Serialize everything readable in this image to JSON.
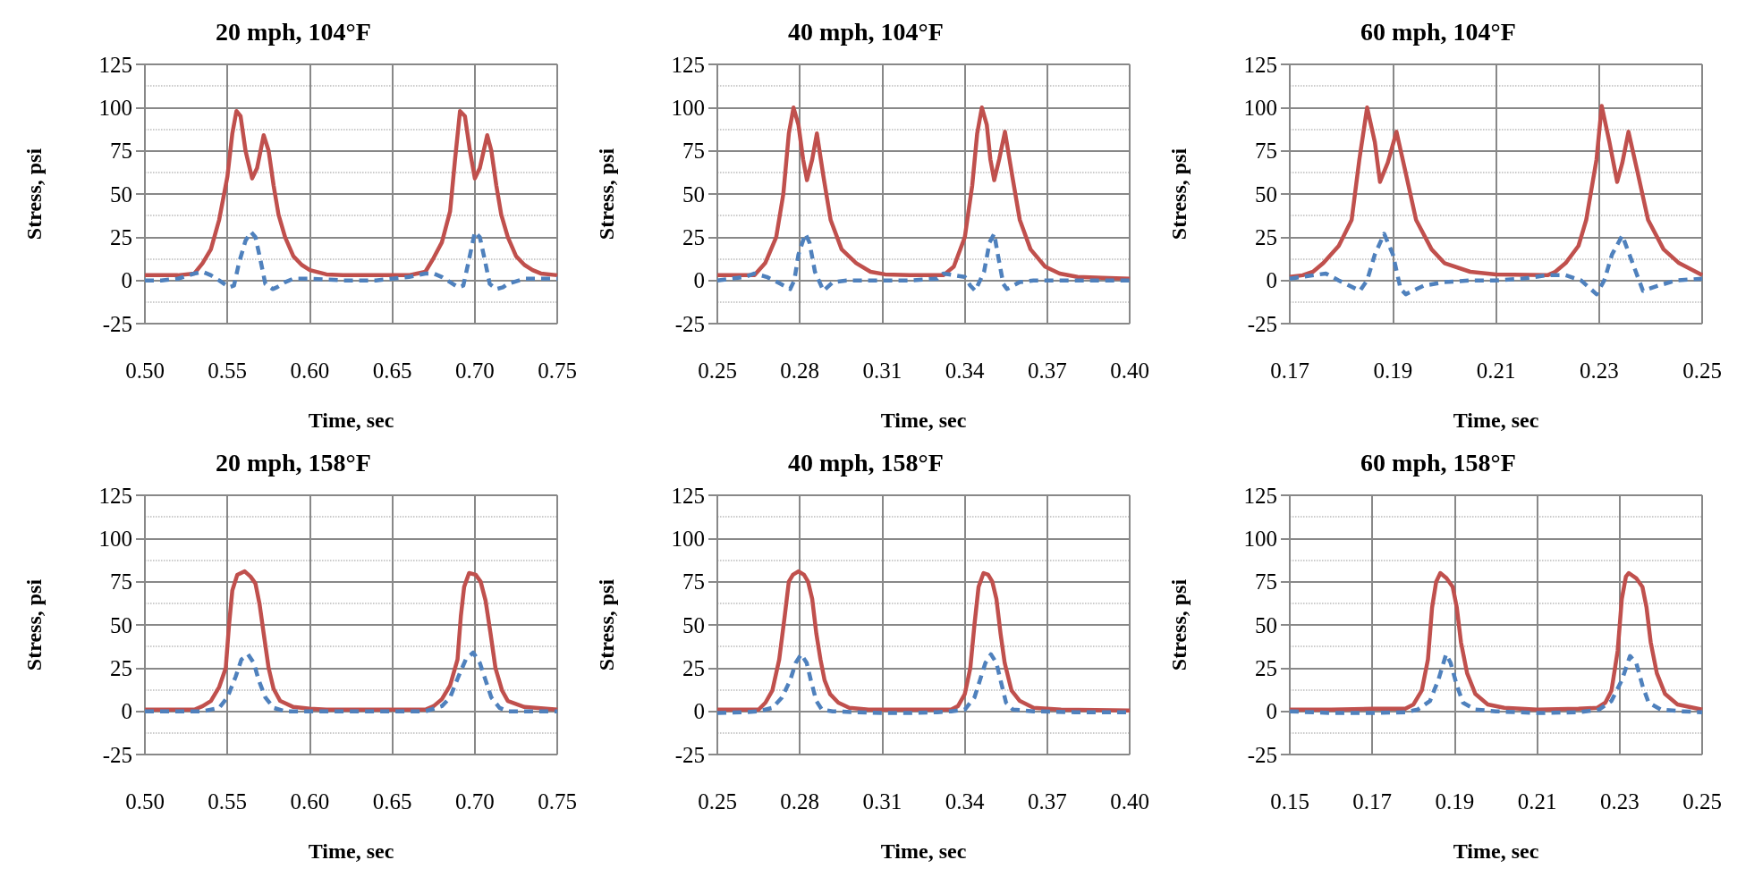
{
  "chart_data": [
    {
      "type": "line",
      "title": "20 mph, 104°F",
      "xlabel": "Time, sec",
      "ylabel": "Stress, psi",
      "xlim": [
        0.5,
        0.75
      ],
      "xticks": [
        {
          "value": 0.5,
          "label": "0.50"
        },
        0.55,
        {
          "value": 0.6,
          "label": "0.60"
        },
        0.65,
        {
          "value": 0.7,
          "label": "0.70"
        },
        0.75
      ],
      "ylim": [
        -25,
        125
      ],
      "yticks": [
        -25,
        0,
        25,
        50,
        75,
        100,
        125
      ],
      "grid": true,
      "series": [
        {
          "color": "#c0504d",
          "line_style": "solid",
          "x": [
            0.5,
            0.52,
            0.53,
            0.535,
            0.54,
            0.545,
            0.55,
            0.553,
            0.5555,
            0.558,
            0.561,
            0.565,
            0.568,
            0.572,
            0.575,
            0.578,
            0.581,
            0.585,
            0.59,
            0.595,
            0.6,
            0.61,
            0.62,
            0.64,
            0.66,
            0.665,
            0.67,
            0.675,
            0.68,
            0.685,
            0.688,
            0.691,
            0.694,
            0.697,
            0.7,
            0.703,
            0.7075,
            0.71,
            0.713,
            0.716,
            0.72,
            0.725,
            0.73,
            0.735,
            0.74,
            0.75
          ],
          "values": [
            3,
            3,
            4,
            10,
            18,
            35,
            60,
            85,
            98,
            95,
            75,
            59,
            65,
            84,
            75,
            55,
            38,
            25,
            14,
            9,
            6,
            3.5,
            3,
            3,
            3,
            4,
            5,
            13,
            22,
            40,
            70,
            98,
            95,
            75,
            59,
            65,
            84,
            75,
            55,
            38,
            25,
            14,
            9,
            6,
            4,
            3
          ]
        },
        {
          "color": "#4f81bd",
          "line_style": "dashed",
          "x": [
            0.5,
            0.51,
            0.52,
            0.53,
            0.535,
            0.54,
            0.545,
            0.551,
            0.554,
            0.557,
            0.561,
            0.5643,
            0.567,
            0.57,
            0.573,
            0.5775,
            0.58,
            0.585,
            0.59,
            0.6,
            0.62,
            0.64,
            0.65,
            0.66,
            0.67,
            0.675,
            0.68,
            0.685,
            0.69,
            0.693,
            0.696,
            0.7,
            0.703,
            0.706,
            0.709,
            0.713,
            0.717,
            0.72,
            0.73,
            0.74,
            0.75
          ],
          "values": [
            0,
            0,
            1,
            4,
            5,
            3,
            0,
            -4,
            -3,
            10,
            23,
            28,
            25,
            12,
            -2,
            -5,
            -4,
            -1,
            1,
            1,
            0,
            0,
            1,
            2,
            4,
            4,
            2,
            -1,
            -4,
            -3,
            10,
            28,
            25,
            12,
            -2,
            -5,
            -4,
            -2,
            1,
            1,
            1
          ]
        }
      ]
    },
    {
      "type": "line",
      "title": "40 mph, 104°F",
      "xlabel": "Time, sec",
      "ylabel": "Stress, psi",
      "xlim": [
        0.25,
        0.4
      ],
      "xticks": [
        0.25,
        0.28,
        0.31,
        0.34,
        0.37,
        {
          "value": 0.4,
          "label": "0.40"
        }
      ],
      "ylim": [
        -25,
        125
      ],
      "yticks": [
        -25,
        0,
        25,
        50,
        75,
        100,
        125
      ],
      "grid": true,
      "series": [
        {
          "color": "#c0504d",
          "line_style": "solid",
          "x": [
            0.25,
            0.255,
            0.26,
            0.2635,
            0.2674,
            0.2714,
            0.274,
            0.276,
            0.2777,
            0.2795,
            0.2812,
            0.2826,
            0.2845,
            0.2862,
            0.2886,
            0.2912,
            0.2952,
            0.3005,
            0.3057,
            0.311,
            0.32,
            0.3322,
            0.336,
            0.34,
            0.3427,
            0.3445,
            0.3462,
            0.348,
            0.3493,
            0.3507,
            0.3525,
            0.3546,
            0.3573,
            0.36,
            0.3639,
            0.3692,
            0.3745,
            0.381,
            0.39,
            0.4
          ],
          "values": [
            3,
            3,
            3,
            3,
            10,
            25,
            50,
            85,
            100,
            90,
            70,
            58,
            70,
            85,
            60,
            35,
            18,
            10,
            5,
            3.5,
            3,
            3,
            8,
            25,
            55,
            85,
            100,
            90,
            70,
            58,
            70,
            86,
            60,
            35,
            18,
            8,
            4,
            2,
            1.5,
            1
          ]
        },
        {
          "color": "#4f81bd",
          "line_style": "dashed",
          "x": [
            0.25,
            0.26,
            0.2635,
            0.268,
            0.273,
            0.2765,
            0.278,
            0.2795,
            0.282,
            0.2835,
            0.2855,
            0.2886,
            0.292,
            0.297,
            0.31,
            0.32,
            0.33,
            0.3322,
            0.34,
            0.342,
            0.3438,
            0.347,
            0.349,
            0.3507,
            0.352,
            0.354,
            0.3553,
            0.36,
            0.365,
            0.4
          ],
          "values": [
            0,
            2,
            4,
            2,
            -2,
            -5,
            0,
            15,
            27,
            22,
            5,
            -6,
            -1,
            0,
            0,
            0,
            1,
            4,
            2,
            -3,
            -6,
            5,
            22,
            27,
            15,
            -2,
            -5,
            -1,
            0,
            0
          ]
        }
      ]
    },
    {
      "type": "line",
      "title": "60 mph, 104°F",
      "xlabel": "Time, sec",
      "ylabel": "Stress, psi",
      "xlim": [
        0.17,
        0.25
      ],
      "xticks": [
        0.17,
        0.19,
        0.21,
        0.23,
        0.25
      ],
      "ylim": [
        -25,
        125
      ],
      "yticks": [
        -25,
        0,
        25,
        50,
        75,
        100,
        125
      ],
      "grid": true,
      "series": [
        {
          "color": "#c0504d",
          "line_style": "solid",
          "x": [
            0.17,
            0.1725,
            0.1745,
            0.1765,
            0.1795,
            0.182,
            0.1835,
            0.185,
            0.1865,
            0.1875,
            0.189,
            0.1907,
            0.1925,
            0.1945,
            0.1975,
            0.2,
            0.205,
            0.21,
            0.22,
            0.2215,
            0.2235,
            0.226,
            0.2275,
            0.2295,
            0.2305,
            0.232,
            0.2335,
            0.2345,
            0.2357,
            0.2375,
            0.2395,
            0.2425,
            0.2455,
            0.25
          ],
          "values": [
            2,
            3,
            5,
            10,
            20,
            35,
            70,
            100,
            80,
            57,
            68,
            86,
            62,
            35,
            18,
            10,
            5,
            3.5,
            3,
            5,
            10,
            20,
            35,
            70,
            101,
            80,
            57,
            68,
            86,
            62,
            35,
            18,
            10,
            3
          ]
        },
        {
          "color": "#4f81bd",
          "line_style": "dashed",
          "x": [
            0.17,
            0.177,
            0.1795,
            0.1836,
            0.185,
            0.1865,
            0.1883,
            0.19,
            0.1915,
            0.1925,
            0.196,
            0.2,
            0.205,
            0.21,
            0.215,
            0.22,
            0.2235,
            0.2265,
            0.2295,
            0.231,
            0.2325,
            0.2345,
            0.2365,
            0.2385,
            0.2415,
            0.245,
            0.25
          ],
          "values": [
            1,
            4,
            0,
            -6,
            0,
            15,
            27,
            15,
            -5,
            -8,
            -3,
            -1,
            0,
            0,
            1,
            3,
            3,
            0,
            -8,
            0,
            15,
            26,
            10,
            -6,
            -3,
            0,
            1
          ]
        }
      ]
    },
    {
      "type": "line",
      "title": "20 mph, 158°F",
      "xlabel": "Time, sec",
      "ylabel": "Stress, psi",
      "xlim": [
        0.5,
        0.75
      ],
      "xticks": [
        {
          "value": 0.5,
          "label": "0.50"
        },
        0.55,
        {
          "value": 0.6,
          "label": "0.60"
        },
        0.65,
        {
          "value": 0.7,
          "label": "0.70"
        },
        0.75
      ],
      "ylim": [
        -25,
        125
      ],
      "yticks": [
        -25,
        0,
        25,
        50,
        75,
        100,
        125
      ],
      "grid": true,
      "series": [
        {
          "color": "#c0504d",
          "line_style": "solid",
          "x": [
            0.5,
            0.53,
            0.535,
            0.54,
            0.545,
            0.549,
            0.551,
            0.553,
            0.556,
            0.5605,
            0.564,
            0.567,
            0.5695,
            0.572,
            0.575,
            0.578,
            0.582,
            0.59,
            0.6,
            0.61,
            0.67,
            0.675,
            0.68,
            0.685,
            0.6895,
            0.6915,
            0.6935,
            0.6965,
            0.7005,
            0.7035,
            0.7065,
            0.7095,
            0.7125,
            0.7165,
            0.72,
            0.73,
            0.75
          ],
          "values": [
            1,
            1,
            3,
            6,
            14,
            25,
            50,
            70,
            79,
            81,
            78,
            74,
            62,
            45,
            25,
            13,
            6,
            2.5,
            1.5,
            1,
            1,
            3,
            7,
            15,
            30,
            55,
            72,
            80,
            79,
            75,
            64,
            45,
            25,
            12,
            6,
            2.5,
            1
          ]
        },
        {
          "color": "#4f81bd",
          "line_style": "dashed",
          "x": [
            0.5,
            0.535,
            0.545,
            0.55,
            0.555,
            0.5585,
            0.5625,
            0.566,
            0.569,
            0.573,
            0.578,
            0.585,
            0.62,
            0.67,
            0.68,
            0.685,
            0.69,
            0.6945,
            0.699,
            0.703,
            0.7065,
            0.71,
            0.715,
            0.72,
            0.75
          ],
          "values": [
            0,
            0,
            2,
            8,
            20,
            30,
            33,
            28,
            18,
            8,
            2,
            0,
            0,
            0,
            3,
            8,
            20,
            30,
            34,
            28,
            18,
            8,
            2,
            0,
            0
          ]
        }
      ]
    },
    {
      "type": "line",
      "title": "40 mph, 158°F",
      "xlabel": "Time, sec",
      "ylabel": "Stress, psi",
      "xlim": [
        0.25,
        0.4
      ],
      "xticks": [
        0.25,
        0.28,
        0.31,
        0.34,
        0.37,
        {
          "value": 0.4,
          "label": "0.40"
        }
      ],
      "ylim": [
        -25,
        125
      ],
      "yticks": [
        -25,
        0,
        25,
        50,
        75,
        100,
        125
      ],
      "grid": true,
      "series": [
        {
          "color": "#c0504d",
          "line_style": "solid",
          "x": [
            0.25,
            0.265,
            0.2675,
            0.27,
            0.2725,
            0.2745,
            0.276,
            0.2775,
            0.2795,
            0.2815,
            0.283,
            0.2845,
            0.286,
            0.2875,
            0.289,
            0.291,
            0.294,
            0.298,
            0.305,
            0.335,
            0.3375,
            0.34,
            0.342,
            0.3435,
            0.345,
            0.3468,
            0.3485,
            0.35,
            0.3515,
            0.353,
            0.3545,
            0.357,
            0.36,
            0.365,
            0.375,
            0.4
          ],
          "values": [
            1,
            1,
            5,
            12,
            30,
            55,
            75,
            79,
            81,
            79,
            75,
            65,
            45,
            30,
            18,
            10,
            5,
            2,
            1,
            1,
            3,
            10,
            25,
            50,
            72,
            80,
            79,
            75,
            65,
            45,
            28,
            12,
            6,
            2,
            1,
            0.5
          ]
        },
        {
          "color": "#4f81bd",
          "line_style": "dashed",
          "x": [
            0.25,
            0.26,
            0.265,
            0.27,
            0.2735,
            0.2765,
            0.2785,
            0.2805,
            0.2825,
            0.284,
            0.286,
            0.288,
            0.292,
            0.31,
            0.32,
            0.33,
            0.335,
            0.34,
            0.3435,
            0.3455,
            0.3475,
            0.3495,
            0.3515,
            0.353,
            0.355,
            0.3575,
            0.365,
            0.38,
            0.4
          ],
          "values": [
            -1,
            -0.5,
            0,
            2,
            8,
            18,
            28,
            33,
            28,
            18,
            6,
            1,
            0,
            -1,
            -1,
            -0.5,
            0,
            1,
            8,
            18,
            28,
            33,
            28,
            18,
            5,
            1,
            0,
            -0.5,
            -0.5
          ]
        }
      ]
    },
    {
      "type": "line",
      "title": "60 mph, 158°F",
      "xlabel": "Time, sec",
      "ylabel": "Stress, psi",
      "xlim": [
        0.15,
        0.25
      ],
      "xticks": [
        0.15,
        0.17,
        0.19,
        0.21,
        0.23,
        0.25
      ],
      "ylim": [
        -25,
        125
      ],
      "yticks": [
        -25,
        0,
        25,
        50,
        75,
        100,
        125
      ],
      "grid": true,
      "series": [
        {
          "color": "#c0504d",
          "line_style": "solid",
          "x": [
            0.15,
            0.16,
            0.17,
            0.178,
            0.18,
            0.182,
            0.1835,
            0.1845,
            0.1855,
            0.1865,
            0.188,
            0.1895,
            0.1905,
            0.1915,
            0.193,
            0.195,
            0.198,
            0.202,
            0.21,
            0.22,
            0.2245,
            0.2265,
            0.228,
            0.2295,
            0.2305,
            0.2315,
            0.2322,
            0.234,
            0.2355,
            0.2365,
            0.2375,
            0.239,
            0.241,
            0.244,
            0.25
          ],
          "values": [
            1,
            1,
            1.5,
            1.5,
            4,
            12,
            30,
            60,
            75,
            80,
            77,
            72,
            60,
            40,
            22,
            10,
            4,
            2,
            1,
            1.5,
            2,
            5,
            12,
            35,
            65,
            78,
            80,
            77,
            72,
            60,
            40,
            22,
            10,
            4,
            1
          ]
        },
        {
          "color": "#4f81bd",
          "line_style": "dashed",
          "x": [
            0.15,
            0.16,
            0.17,
            0.178,
            0.181,
            0.184,
            0.186,
            0.1879,
            0.189,
            0.1905,
            0.192,
            0.195,
            0.2,
            0.21,
            0.22,
            0.225,
            0.228,
            0.2305,
            0.2325,
            0.234,
            0.2355,
            0.237,
            0.24,
            0.245,
            0.25
          ],
          "values": [
            0,
            -1,
            -1,
            -0.5,
            1,
            6,
            18,
            33,
            28,
            15,
            5,
            1,
            0,
            -1,
            -0.5,
            1,
            6,
            18,
            32,
            28,
            15,
            5,
            1,
            0,
            -0.5
          ]
        }
      ]
    }
  ]
}
